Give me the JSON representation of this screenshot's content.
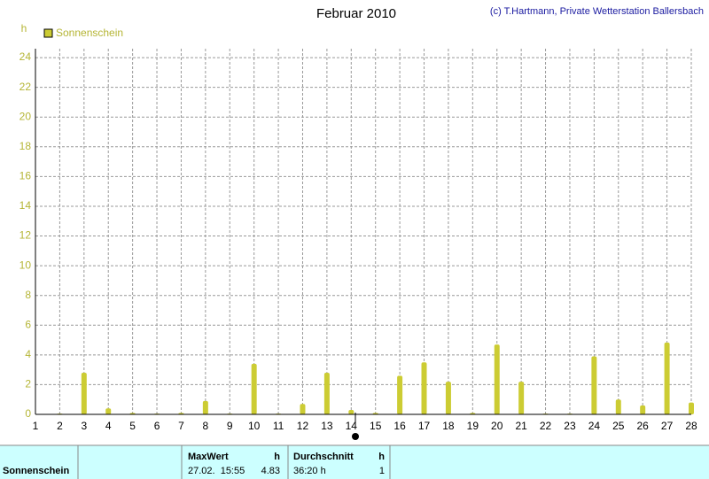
{
  "chart_data": {
    "type": "bar",
    "title": "Februar 2010",
    "credit": "(c) T.Hartmann, Private Wetterstation Ballersbach",
    "ylabel": "h",
    "x": [
      1,
      2,
      3,
      4,
      5,
      6,
      7,
      8,
      9,
      10,
      11,
      12,
      13,
      14,
      15,
      16,
      17,
      18,
      19,
      20,
      21,
      22,
      23,
      24,
      25,
      26,
      27,
      28
    ],
    "series": [
      {
        "name": "Sonnenschein",
        "color": "#cccc33",
        "values": [
          0,
          0.05,
          2.8,
          0.4,
          0.1,
          0.05,
          0.1,
          0.9,
          0.05,
          3.4,
          0.05,
          0.7,
          2.8,
          0.3,
          0.1,
          2.6,
          3.5,
          2.2,
          0.1,
          4.7,
          2.2,
          0.05,
          0.05,
          3.9,
          1.0,
          0.6,
          4.83,
          0.8
        ]
      }
    ],
    "xlim": [
      1,
      28
    ],
    "xticks": [
      1,
      2,
      3,
      4,
      5,
      6,
      7,
      8,
      9,
      10,
      11,
      12,
      13,
      14,
      15,
      16,
      17,
      18,
      19,
      20,
      21,
      22,
      23,
      24,
      25,
      26,
      27,
      28
    ],
    "ylim": [
      0,
      24.6
    ],
    "yticks": [
      0,
      2,
      4,
      6,
      8,
      10,
      12,
      14,
      16,
      18,
      20,
      22,
      24
    ],
    "grid": true
  },
  "table": {
    "row_label": "Sonnenschein",
    "max_header": "MaxWert",
    "max_unit": "h",
    "max_time": "27.02.  15:55",
    "max_value": "4.83",
    "avg_header": "Durchschnitt",
    "avg_unit": "h",
    "avg_value": "36:20 h",
    "avg_count": "1"
  }
}
